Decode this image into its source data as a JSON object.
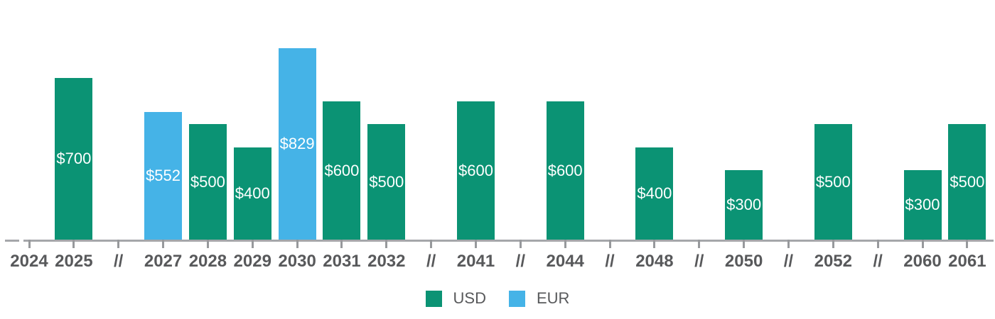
{
  "chart_data": {
    "type": "bar",
    "title": "",
    "xlabel": "",
    "ylabel": "",
    "grid": false,
    "legend_position": "bottom",
    "break_symbol": "//",
    "value_prefix": "$",
    "ylim": [
      0,
      850
    ],
    "x_slots": [
      "2024",
      "2025",
      "//",
      "2027",
      "2028",
      "2029",
      "2030",
      "2031",
      "2032",
      "//",
      "2041",
      "//",
      "2044",
      "//",
      "2048",
      "//",
      "2050",
      "//",
      "2052",
      "//",
      "2060",
      "2061"
    ],
    "bars": [
      {
        "year": "2025",
        "value": 700,
        "label": "$700",
        "series": "USD"
      },
      {
        "year": "2027",
        "value": 552,
        "label": "$552",
        "series": "EUR"
      },
      {
        "year": "2028",
        "value": 500,
        "label": "$500",
        "series": "USD"
      },
      {
        "year": "2029",
        "value": 400,
        "label": "$400",
        "series": "USD"
      },
      {
        "year": "2030",
        "value": 829,
        "label": "$829",
        "series": "EUR"
      },
      {
        "year": "2031",
        "value": 600,
        "label": "$600",
        "series": "USD"
      },
      {
        "year": "2032",
        "value": 500,
        "label": "$500",
        "series": "USD"
      },
      {
        "year": "2041",
        "value": 600,
        "label": "$600",
        "series": "USD"
      },
      {
        "year": "2044",
        "value": 600,
        "label": "$600",
        "series": "USD"
      },
      {
        "year": "2048",
        "value": 400,
        "label": "$400",
        "series": "USD"
      },
      {
        "year": "2050",
        "value": 300,
        "label": "$300",
        "series": "USD"
      },
      {
        "year": "2052",
        "value": 500,
        "label": "$500",
        "series": "USD"
      },
      {
        "year": "2060",
        "value": 300,
        "label": "$300",
        "series": "USD"
      },
      {
        "year": "2061",
        "value": 500,
        "label": "$500",
        "series": "USD"
      }
    ],
    "series_colors": {
      "USD": "#0b9374",
      "EUR": "#45b3e7"
    },
    "legend": [
      {
        "label": "USD",
        "series": "USD"
      },
      {
        "label": "EUR",
        "series": "EUR"
      }
    ]
  },
  "colors": {
    "usd_green": "#0b9374",
    "eur_blue": "#45b3e7",
    "axis_line": "#a5a7aa",
    "tick": "#97999c",
    "axis_label_text": "#58595b",
    "bar_value_text": "#ffffff",
    "background": "#ffffff"
  }
}
